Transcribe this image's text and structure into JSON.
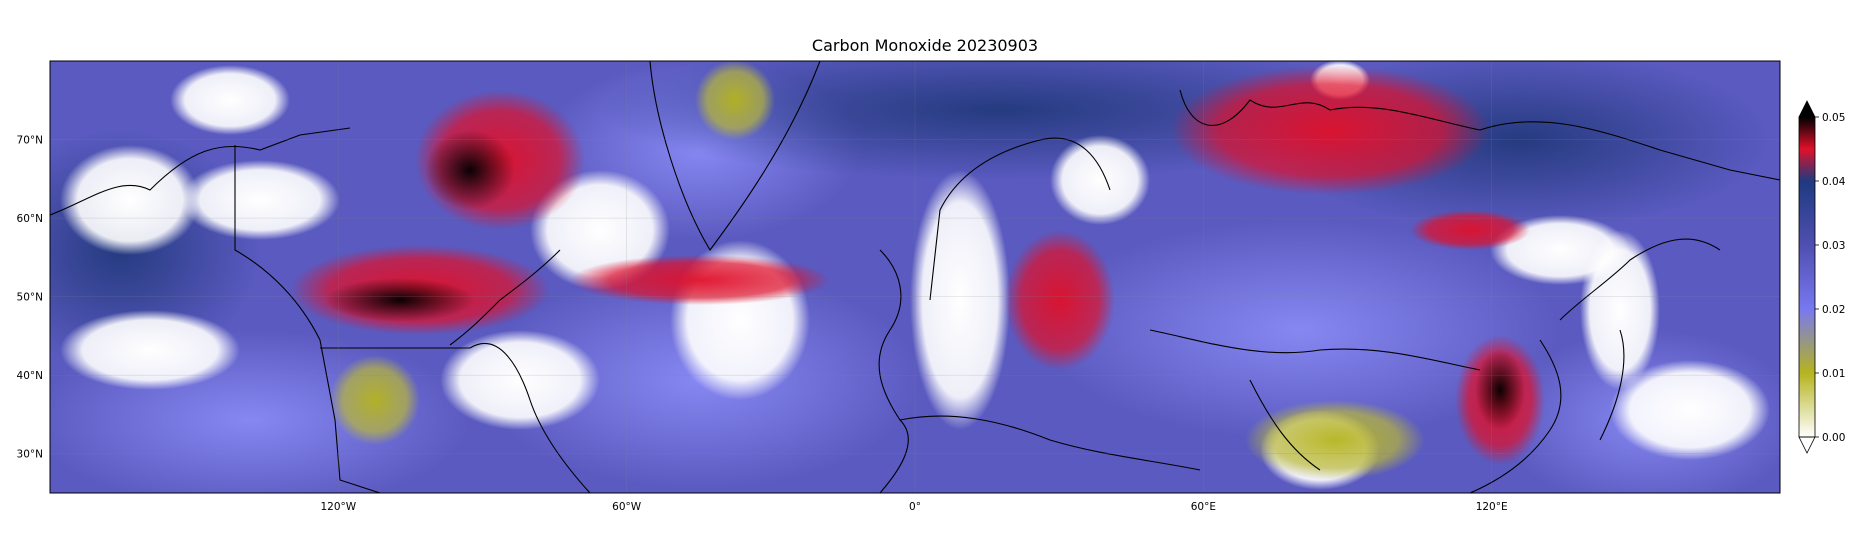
{
  "title": "Carbon Monoxide 20230903",
  "map": {
    "variable": "Carbon Monoxide",
    "date": "20230903",
    "projection": "plate-carree",
    "lon_range": [
      -180,
      180
    ],
    "lat_range": [
      25,
      80
    ],
    "lon_ticks": [
      {
        "value": -120,
        "label": "120°W"
      },
      {
        "value": -60,
        "label": "60°W"
      },
      {
        "value": 0,
        "label": "0°"
      },
      {
        "value": 60,
        "label": "60°E"
      },
      {
        "value": 120,
        "label": "120°E"
      }
    ],
    "lat_ticks": [
      {
        "value": 70,
        "label": "70°N"
      },
      {
        "value": 60,
        "label": "60°N"
      },
      {
        "value": 50,
        "label": "50°N"
      },
      {
        "value": 40,
        "label": "40°N"
      },
      {
        "value": 30,
        "label": "30°N"
      }
    ],
    "gridlines": true,
    "missing_data_color": "#ffffff"
  },
  "colorbar": {
    "ticks": [
      "0.05",
      "0.04",
      "0.03",
      "0.02",
      "0.01",
      "0.00"
    ],
    "tick_values": [
      0.05,
      0.04,
      0.03,
      0.02,
      0.01,
      0.0
    ],
    "range": [
      0.0,
      0.05
    ],
    "extend": "both",
    "color_stops": [
      {
        "value": 0.0,
        "color": "#ffffff"
      },
      {
        "value": 0.01,
        "color": "#b5b41e"
      },
      {
        "value": 0.02,
        "color": "#7878f0"
      },
      {
        "value": 0.03,
        "color": "#4f4fb0"
      },
      {
        "value": 0.04,
        "color": "#1e3a80"
      },
      {
        "value": 0.045,
        "color": "#e0102a"
      },
      {
        "value": 0.05,
        "color": "#000000"
      }
    ],
    "over_color": "#000000",
    "under_color": "#ffffff"
  }
}
